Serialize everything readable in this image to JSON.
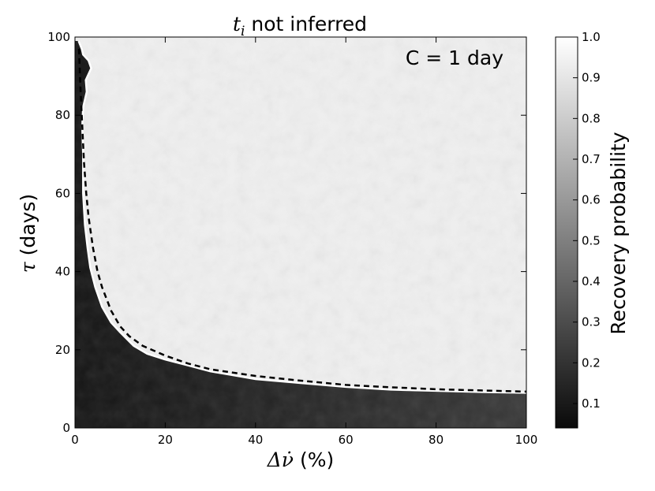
{
  "chart_data": {
    "type": "heatmap",
    "title": {
      "math": "t",
      "sub": "i",
      "text": " not inferred"
    },
    "xlabel": {
      "math": "Δν̇",
      "text": " (%)"
    },
    "ylabel": {
      "math": "τ",
      "text": " (days)"
    },
    "xlim": [
      0,
      100
    ],
    "ylim": [
      0,
      100
    ],
    "xticks": [
      0,
      20,
      40,
      60,
      80,
      100
    ],
    "yticks": [
      0,
      20,
      40,
      60,
      80,
      100
    ],
    "annotation": "C = 1 day",
    "colorbar": {
      "label": "Recovery probability",
      "range": [
        0.04,
        1.0
      ],
      "ticks": [
        "0.1",
        "0.2",
        "0.3",
        "0.4",
        "0.5",
        "0.6",
        "0.7",
        "0.8",
        "0.9",
        "1.0"
      ],
      "colormap": "gray"
    },
    "field_description": "recovery probability ≈ 0.95–1.0 above the boundary curve, dropping to ≈ 0.05–0.3 below it",
    "contours": [
      {
        "name": "white contour",
        "color": "#ffffff",
        "style": "solid",
        "x": [
          0.8,
          1.5,
          1.8,
          3.0,
          3.6,
          2.4,
          2.6,
          1.8,
          1.6,
          1.8,
          1.8,
          2.2,
          2.8,
          3.4,
          4.5,
          6.0,
          8.0,
          10.0,
          13.0,
          16.0,
          20.0,
          25.0,
          30.0,
          35.0,
          40.0,
          45.0,
          50.0,
          60.0,
          70.0,
          80.0,
          90.0,
          100.0
        ],
        "y": [
          99.0,
          97.0,
          95.5,
          94.0,
          92.0,
          89.0,
          86.0,
          82.0,
          77.0,
          70.0,
          60.0,
          52.0,
          46.0,
          41.0,
          36.0,
          31.0,
          27.0,
          24.5,
          21.0,
          19.0,
          17.5,
          16.0,
          14.5,
          13.5,
          12.5,
          12.0,
          11.5,
          10.5,
          9.8,
          9.5,
          9.2,
          9.0
        ]
      },
      {
        "name": "dashed theory curve",
        "color": "#000000",
        "style": "dashed",
        "x": [
          0.9,
          1.1,
          1.5,
          2.0,
          2.5,
          3.0,
          4.0,
          5.0,
          6.0,
          8.0,
          10.0,
          12.0,
          15.0,
          20.0,
          25.0,
          30.0,
          40.0,
          50.0,
          60.0,
          70.0,
          80.0,
          90.0,
          100.0
        ],
        "y": [
          97.0,
          90.0,
          80.0,
          68.0,
          60.0,
          54.0,
          46.0,
          40.0,
          36.0,
          30.0,
          26.0,
          23.5,
          21.0,
          18.5,
          16.5,
          15.0,
          13.3,
          12.1,
          11.0,
          10.4,
          9.9,
          9.6,
          9.3
        ]
      }
    ],
    "grid": false
  }
}
